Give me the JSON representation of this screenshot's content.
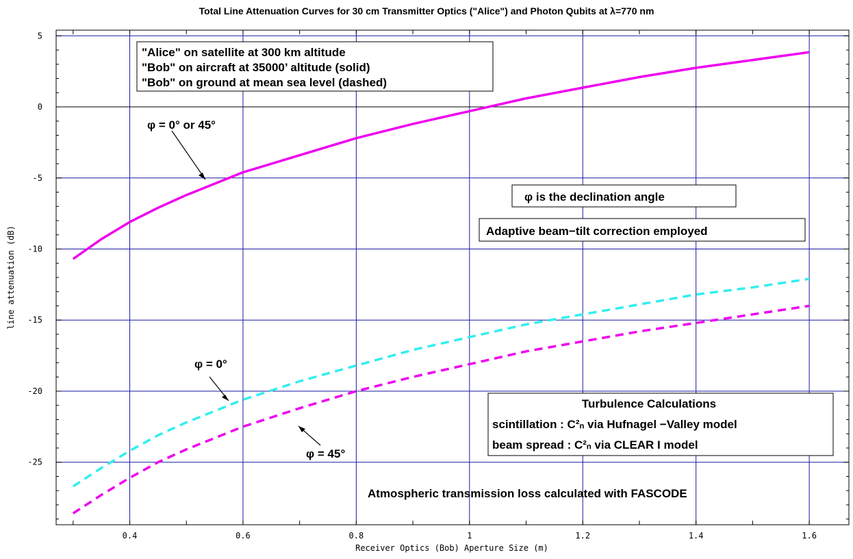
{
  "chart_data": {
    "type": "line",
    "title": "Total Line Attenuation Curves for 30 cm Transmitter Optics (\"Alice\") and Photon Qubits at λ=770 nm",
    "xlabel": "Receiver Optics (Bob) Aperture Size (m)",
    "ylabel": "line attenuation (dB)",
    "xlim": [
      0.27,
      1.67
    ],
    "ylim": [
      -29.4,
      5.4
    ],
    "grid": true,
    "x_ticks": [
      "0.4",
      "0.6",
      "0.8",
      "1",
      "1.2",
      "1.4",
      "1.6"
    ],
    "y_ticks": [
      "5",
      "0",
      "-5",
      "-10",
      "-15",
      "-20",
      "-25"
    ],
    "series": [
      {
        "color": "#ee00ee",
        "dashed": false,
        "x": [
          0.3,
          0.35,
          0.4,
          0.45,
          0.5,
          0.55,
          0.6,
          0.7,
          0.8,
          0.9,
          1.0,
          1.1,
          1.2,
          1.3,
          1.4,
          1.5,
          1.6
        ],
        "y": [
          -10.7,
          -9.3,
          -8.1,
          -7.1,
          -6.2,
          -5.4,
          -4.6,
          -3.4,
          -2.2,
          -1.2,
          -0.3,
          0.6,
          1.35,
          2.1,
          2.75,
          3.3,
          3.85
        ]
      },
      {
        "color": "#33eeee",
        "dashed": true,
        "x": [
          0.3,
          0.35,
          0.4,
          0.45,
          0.5,
          0.55,
          0.6,
          0.7,
          0.8,
          0.9,
          1.0,
          1.1,
          1.2,
          1.3,
          1.4,
          1.5,
          1.6
        ],
        "y": [
          -26.7,
          -25.4,
          -24.2,
          -23.1,
          -22.2,
          -21.4,
          -20.6,
          -19.3,
          -18.2,
          -17.1,
          -16.2,
          -15.3,
          -14.6,
          -13.9,
          -13.2,
          -12.7,
          -12.1
        ]
      },
      {
        "color": "#ee00ee",
        "dashed": true,
        "x": [
          0.3,
          0.35,
          0.4,
          0.45,
          0.5,
          0.55,
          0.6,
          0.7,
          0.8,
          0.9,
          1.0,
          1.1,
          1.2,
          1.3,
          1.4,
          1.5,
          1.6
        ],
        "y": [
          -28.6,
          -27.3,
          -26.1,
          -25.0,
          -24.1,
          -23.3,
          -22.5,
          -21.2,
          -20.0,
          -19.0,
          -18.1,
          -17.2,
          -16.5,
          -15.8,
          -15.2,
          -14.6,
          -14.0
        ]
      }
    ],
    "annotations": {
      "legend_box": [
        "\"Alice\" on satellite  at 300 km altitude",
        "\"Bob\" on aircraft at 35000’ altitude (solid)",
        "\"Bob\" on ground at mean sea level (dashed)"
      ],
      "phi_top": "φ = 0° or 45°",
      "phi_zero": "φ = 0°",
      "phi_45": "φ = 45°",
      "declination_box": "φ is the declination angle",
      "tilt_box": "Adaptive beam−tilt correction employed",
      "turbulence_box": [
        "Turbulence  Calculations",
        "scintillation : C²ₙ via Hufnagel −Valley model",
        "beam spread : C²ₙ via CLEAR I model"
      ],
      "fascode": "Atmospheric transmission loss calculated with FASCODE"
    }
  }
}
